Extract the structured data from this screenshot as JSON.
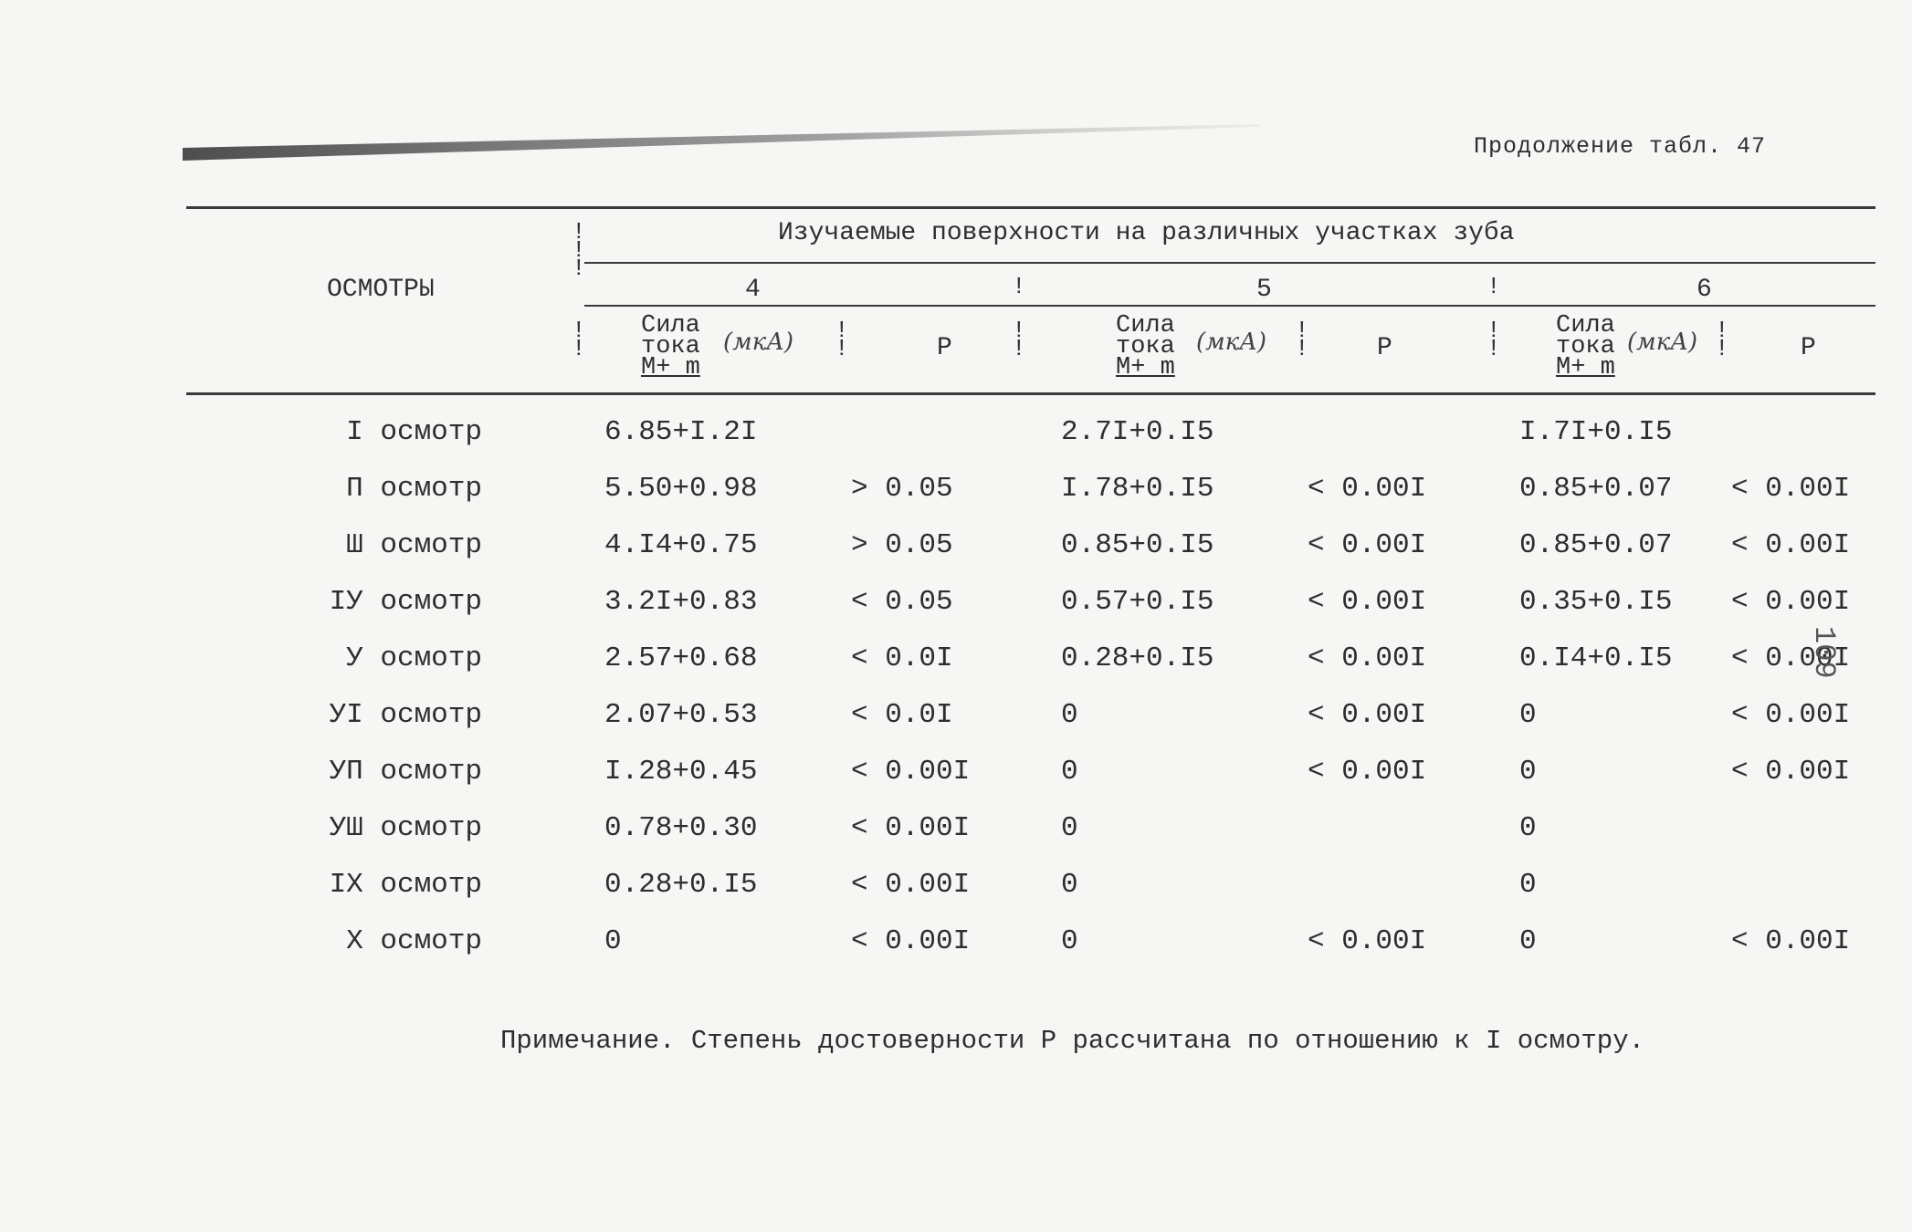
{
  "caption": "Продолжение табл. 47",
  "header": {
    "row_label": "ОСМОТРЫ",
    "group_title": "Изучаемые поверхности на различных участках зуба",
    "sites": [
      "4",
      "5",
      "6"
    ],
    "current_label": [
      "Сила",
      "тока",
      "М+ m"
    ],
    "current_unit": "(мкА)",
    "p_label": "Р"
  },
  "rows": [
    {
      "label": "I осмотр",
      "v4": "6.85+I.2I",
      "p4": "",
      "v5": "2.7I+0.I5",
      "p5": "",
      "v6": "I.7I+0.I5",
      "p6": ""
    },
    {
      "label": "П осмотр",
      "v4": "5.50+0.98",
      "p4": "> 0.05",
      "v5": "I.78+0.I5",
      "p5": "< 0.00I",
      "v6": "0.85+0.07",
      "p6": "< 0.00I"
    },
    {
      "label": "Ш осмотр",
      "v4": "4.I4+0.75",
      "p4": "> 0.05",
      "v5": "0.85+0.I5",
      "p5": "< 0.00I",
      "v6": "0.85+0.07",
      "p6": "< 0.00I"
    },
    {
      "label": "IУ осмотр",
      "v4": "3.2I+0.83",
      "p4": "< 0.05",
      "v5": "0.57+0.I5",
      "p5": "< 0.00I",
      "v6": "0.35+0.I5",
      "p6": "< 0.00I"
    },
    {
      "label": "У осмотр",
      "v4": "2.57+0.68",
      "p4": "< 0.0I",
      "v5": "0.28+0.I5",
      "p5": "< 0.00I",
      "v6": "0.I4+0.I5",
      "p6": "< 0.00I"
    },
    {
      "label": "УI осмотр",
      "v4": "2.07+0.53",
      "p4": "< 0.0I",
      "v5": "0",
      "p5": "< 0.00I",
      "v6": "0",
      "p6": "< 0.00I"
    },
    {
      "label": "УП осмотр",
      "v4": "I.28+0.45",
      "p4": "< 0.00I",
      "v5": "0",
      "p5": "< 0.00I",
      "v6": "0",
      "p6": "< 0.00I"
    },
    {
      "label": "УШ осмотр",
      "v4": "0.78+0.30",
      "p4": "< 0.00I",
      "v5": "0",
      "p5": "",
      "v6": "0",
      "p6": ""
    },
    {
      "label": "IX осмотр",
      "v4": "0.28+0.I5",
      "p4": "< 0.00I",
      "v5": "0",
      "p5": "",
      "v6": "0",
      "p6": ""
    },
    {
      "label": "X осмотр",
      "v4": "0",
      "p4": "< 0.00I",
      "v5": "0",
      "p5": "< 0.00I",
      "v6": "0",
      "p6": "< 0.00I"
    }
  ],
  "note": "Примечание. Степень достоверности Р рассчитана по отношению к I осмотру.",
  "page_number": "109"
}
